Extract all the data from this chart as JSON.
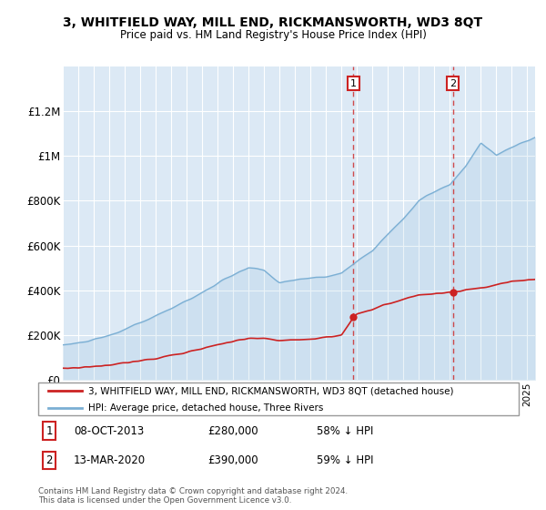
{
  "title": "3, WHITFIELD WAY, MILL END, RICKMANSWORTH, WD3 8QT",
  "subtitle": "Price paid vs. HM Land Registry's House Price Index (HPI)",
  "ylim": [
    0,
    1400000
  ],
  "yticks": [
    0,
    200000,
    400000,
    600000,
    800000,
    1000000,
    1200000
  ],
  "ytick_labels": [
    "£0",
    "£200K",
    "£400K",
    "£600K",
    "£800K",
    "£1M",
    "£1.2M"
  ],
  "xlim_start": 1995.0,
  "xlim_end": 2025.5,
  "background_color": "#dce9f5",
  "grid_color": "#ffffff",
  "hpi_color": "#7bafd4",
  "price_color": "#cc2222",
  "transaction1": {
    "label": "1",
    "date": "08-OCT-2013",
    "price": "£280,000",
    "hpi_pct": "58% ↓ HPI",
    "x": 2013.77
  },
  "transaction2": {
    "label": "2",
    "date": "13-MAR-2020",
    "price": "£390,000",
    "hpi_pct": "59% ↓ HPI",
    "x": 2020.2
  },
  "footer": "Contains HM Land Registry data © Crown copyright and database right 2024.\nThis data is licensed under the Open Government Licence v3.0.",
  "legend_line1": "3, WHITFIELD WAY, MILL END, RICKMANSWORTH, WD3 8QT (detached house)",
  "legend_line2": "HPI: Average price, detached house, Three Rivers"
}
